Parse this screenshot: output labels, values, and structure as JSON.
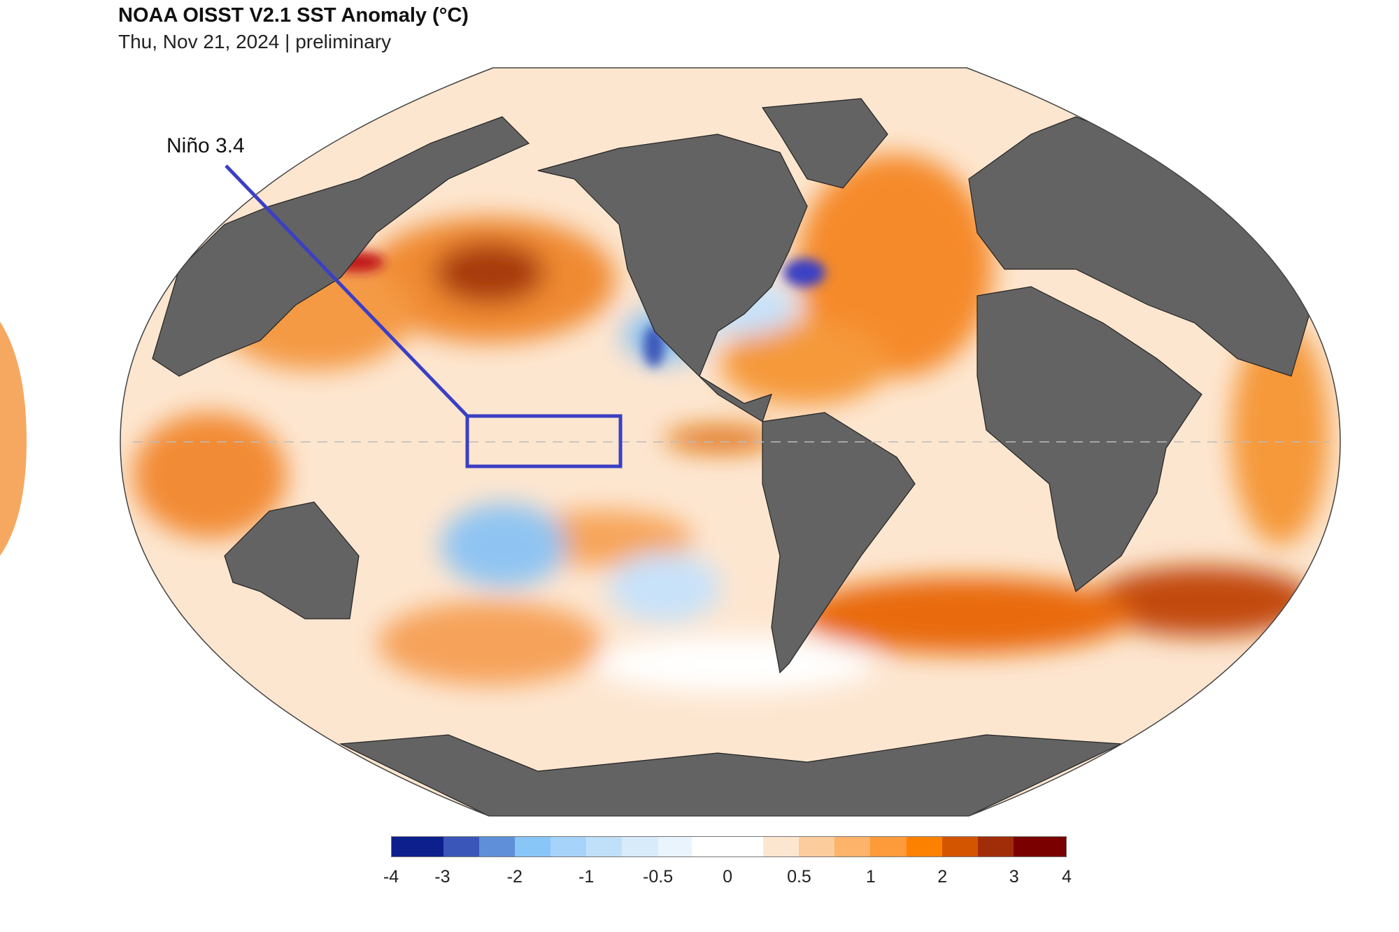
{
  "title": "NOAA OISST V2.1 SST Anomaly (°C)",
  "subtitle": "Thu, Nov 21, 2024 | preliminary",
  "annotation": {
    "label": "Niño 3.4",
    "box_color": "#3b3fc4"
  },
  "colors": {
    "land": "#636363",
    "ocean_base": "#fde6d0"
  },
  "colorbar": {
    "colors": [
      "#0d1f8c",
      "#3a56b8",
      "#5f8fd8",
      "#88c6f7",
      "#a6d3f9",
      "#c0e0fa",
      "#d8ebfb",
      "#eaf4fd",
      "#ffffff",
      "#fde6d0",
      "#fdcc9c",
      "#fdb36a",
      "#fd9a3a",
      "#fd8100",
      "#d45500",
      "#a02d08",
      "#7a0000"
    ],
    "ticks": [
      "-4",
      "-3",
      "-2",
      "-1",
      "-0.5",
      "0",
      "0.5",
      "1",
      "2",
      "3",
      "4"
    ]
  }
}
